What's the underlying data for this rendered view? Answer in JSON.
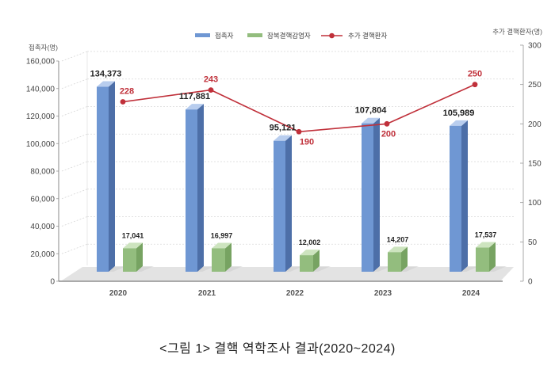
{
  "chart_data": {
    "type": "bar",
    "categories": [
      "2020",
      "2021",
      "2022",
      "2023",
      "2024"
    ],
    "series": [
      {
        "name": "접촉자",
        "type": "bar",
        "axis": "left",
        "color": "#6f97d3",
        "values": [
          134373,
          117881,
          95121,
          107804,
          105989
        ],
        "labels": [
          "134,373",
          "117,881",
          "95,121",
          "107,804",
          "105,989"
        ]
      },
      {
        "name": "잠복결핵감염자",
        "type": "bar",
        "axis": "left",
        "color": "#93bd7e",
        "values": [
          17041,
          16997,
          12002,
          14207,
          17537
        ],
        "labels": [
          "17,041",
          "16,997",
          "12,002",
          "14,207",
          "17,537"
        ]
      },
      {
        "name": "추가 결핵환자",
        "type": "line",
        "axis": "right",
        "color": "#c0303a",
        "values": [
          228,
          243,
          190,
          200,
          250
        ],
        "labels": [
          "228",
          "243",
          "190",
          "200",
          "250"
        ]
      }
    ],
    "y_left": {
      "label": "접촉자(명)",
      "range": [
        0,
        160000
      ],
      "ticks": [
        0,
        20000,
        40000,
        60000,
        80000,
        100000,
        120000,
        140000,
        160000
      ],
      "tick_labels": [
        "0",
        "20,000",
        "40,000",
        "60,000",
        "80,000",
        "100,000",
        "120,000",
        "140,000",
        "160,000"
      ]
    },
    "y_right": {
      "label": "추가 결핵환자(명)",
      "range": [
        0,
        300
      ],
      "ticks": [
        0,
        50,
        100,
        150,
        200,
        250,
        300
      ],
      "tick_labels": [
        "0",
        "50",
        "100",
        "150",
        "200",
        "250",
        "300"
      ]
    },
    "grid": true,
    "legend_position": "top-center",
    "style": "3d-column"
  },
  "caption": "<그림 1> 결핵 역학조사 결과(2020~2024)"
}
